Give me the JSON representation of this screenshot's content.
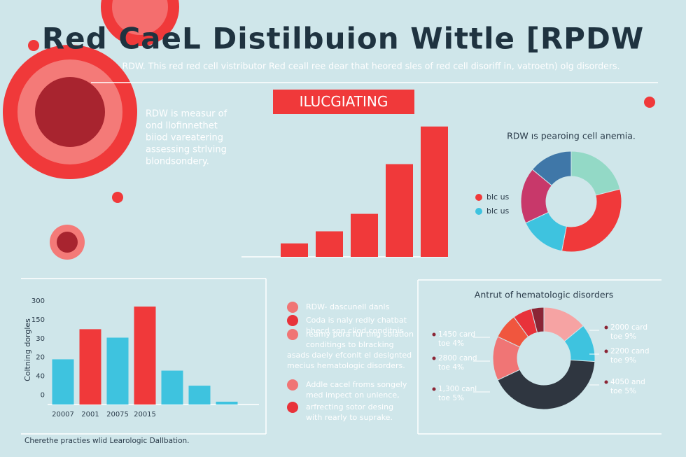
{
  "title": "Red CaeL Distilbuion Wittle [RPDW",
  "subtitle": "RDW. This red red cell vistributor Red ceall ree dear that heored sles of red cell disoriff in, vatroetn) olg disorders.",
  "intro": [
    "RDW is measur of",
    "ond llofinnethet",
    "biiod vareatering",
    "assessing strlving",
    "blondsondery."
  ],
  "notes": [
    [
      "RDW- dascunell danls"
    ],
    [
      "Coda is naly redly chatbat",
      "bhecd son cliod conditnis"
    ],
    [
      "reamy pora fur ting solation",
      "conditings to blracking",
      "asads daely efconlt el deslgnted",
      "mecius hematologic disorders."
    ],
    [
      "Addle cacel froms songely",
      "med impect on unlence,"
    ],
    [
      "arfrecting sotor desing",
      "with rearly to suprake."
    ]
  ],
  "footer": "Cherethe practies wlid Learologic Dallbation.",
  "chart_data": [
    {
      "type": "bar",
      "title": "ILUCGIATING",
      "categories": [
        null,
        null,
        null,
        null,
        null
      ],
      "values": [
        10,
        19,
        32,
        69,
        97
      ],
      "color": "#f0393a",
      "ylim": [
        0,
        100
      ]
    },
    {
      "type": "donut",
      "title": "RDW ıs pearoing cell anemia.",
      "categories": [
        null,
        null,
        null,
        null,
        null
      ],
      "values": [
        21,
        32,
        15,
        18,
        14
      ],
      "colors": [
        "#93d9c6",
        "#f0393a",
        "#3ec3df",
        "#c8386a",
        "#3f77a8"
      ],
      "legend": [
        {
          "name": "blc us",
          "color": "#f0393a"
        },
        {
          "name": "blc us",
          "color": "#3ec3df"
        }
      ]
    },
    {
      "type": "bar",
      "ylabel": "Coltning dorgles",
      "categories": [
        "20007",
        "2001",
        "20075",
        "20015",
        null,
        null,
        null
      ],
      "values": [
        38,
        70,
        61,
        94,
        26,
        10,
        -7
      ],
      "colors": [
        "#3ec3df",
        "#f0393a",
        "#3ec3df",
        "#f0393a",
        "#3ec3df",
        "#3ec3df",
        "#3ec3df"
      ],
      "ylim": [
        -10,
        100
      ],
      "yticks": [
        {
          "value": 100,
          "label": "300"
        },
        {
          "value": 80,
          "label": "150"
        },
        {
          "value": 60,
          "label": "30"
        },
        {
          "value": 40,
          "label": "20"
        },
        {
          "value": 20,
          "label": "40"
        },
        0
      ]
    },
    {
      "type": "donut",
      "title": "Antrut of hematologic disorders",
      "categories": [
        null,
        null,
        null,
        null,
        null,
        null,
        null
      ],
      "values": [
        14,
        12,
        42,
        14,
        8,
        6,
        4
      ],
      "colors": [
        "#f6a3a3",
        "#3ec3df",
        "#2f3640",
        "#f07575",
        "#f0563e",
        "#e8323a",
        "#8b2535"
      ],
      "annotations": [
        [
          "1450 card",
          "toe 4%"
        ],
        [
          "2800 cand",
          "toe 4%"
        ],
        [
          "1,300 canl",
          "toe 5%"
        ],
        [
          "2000 card",
          "toe 9%"
        ],
        [
          "2200 cand",
          "toe 9%"
        ],
        [
          "4050 and",
          "toe 5%"
        ]
      ]
    }
  ]
}
